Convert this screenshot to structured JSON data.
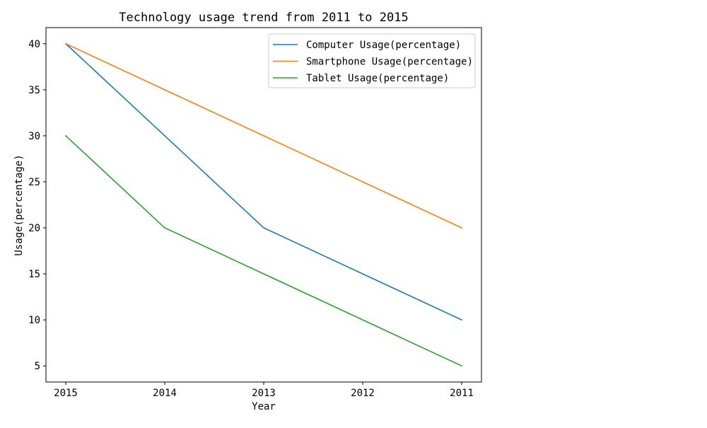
{
  "chart_data": {
    "type": "line",
    "title": "Technology usage trend from 2011 to 2015",
    "xlabel": "Year",
    "ylabel": "Usage(percentage)",
    "categories": [
      "2015",
      "2014",
      "2013",
      "2012",
      "2011"
    ],
    "yticks": [
      5,
      10,
      15,
      20,
      25,
      30,
      35,
      40
    ],
    "ylim": [
      3.25,
      41.75
    ],
    "grid": false,
    "legend_position": "top-right",
    "series": [
      {
        "name": "Computer Usage(percentage)",
        "color": "#1f77b4",
        "values": [
          40,
          30,
          20,
          15,
          10
        ]
      },
      {
        "name": "Smartphone Usage(percentage)",
        "color": "#ff7f0e",
        "values": [
          40,
          35,
          30,
          25,
          20
        ]
      },
      {
        "name": "Tablet Usage(percentage)",
        "color": "#2ca02c",
        "values": [
          30,
          20,
          15,
          10,
          5
        ]
      }
    ]
  }
}
